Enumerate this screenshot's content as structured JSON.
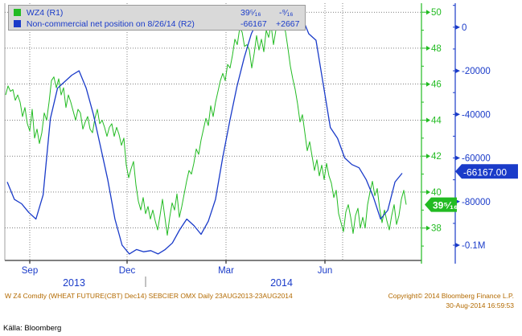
{
  "legend": {
    "series1": {
      "label": "WZ4 (R1)",
      "value": "39⁵⁄₁₆",
      "change": "-⁹⁄₁₆",
      "color": "#22bb22"
    },
    "series2": {
      "label": "Non-commercial net position on 8/26/14 (R2)",
      "value": "-66167",
      "change": "+2667",
      "color": "#1a3bc9"
    }
  },
  "footer": {
    "left": "W Z4 Comdty (WHEAT FUTURE(CBT) Dec14) SEBCIER OMX  Daily 23AUG2013-23AUG2014",
    "right1": "Copyright© 2014 Bloomberg Finance L.P.",
    "right2": "30-Aug-2014 16:59:53"
  },
  "source": "Källa: Bloomberg",
  "chart_data": {
    "type": "line",
    "x_ticks": [
      "Sep",
      "Dec",
      "Mar",
      "Jun"
    ],
    "year_labels": [
      "2013",
      "2014"
    ],
    "y1_ticks": [
      "50",
      "48",
      "46",
      "44",
      "42",
      "40",
      "38"
    ],
    "y1_range": [
      36.2,
      50.5
    ],
    "y2_ticks": [
      "0",
      "-20000",
      "-40000",
      "-60000",
      "-80000",
      "-0.1M"
    ],
    "y2_range": [
      -107000,
      11000
    ],
    "last_price_label": "39⁵⁄₁₆",
    "last_position_label": "-66167.00",
    "series": [
      {
        "name": "WZ4 (R1)",
        "axis": "y1",
        "color": "#22bb22",
        "values": [
          45.4,
          45.9,
          45.6,
          45.7,
          45.1,
          45.4,
          45.0,
          44.2,
          44.7,
          43.8,
          43.4,
          44.6,
          43.0,
          43.5,
          42.7,
          43.3,
          44.4,
          44.0,
          45.0,
          46.2,
          46.4,
          45.8,
          46.3,
          45.4,
          45.8,
          44.7,
          45.4,
          45.0,
          44.5,
          44.0,
          44.6,
          44.4,
          43.5,
          43.9,
          44.2,
          43.5,
          43.3,
          44.1,
          44.6,
          43.8,
          44.0,
          43.6,
          43.1,
          43.6,
          43.8,
          43.1,
          43.6,
          43.2,
          42.6,
          43.0,
          41.5,
          40.8,
          41.3,
          41.7,
          40.4,
          39.5,
          39.0,
          39.7,
          38.8,
          39.2,
          38.5,
          39.0,
          38.4,
          37.9,
          38.7,
          39.6,
          38.6,
          37.6,
          38.6,
          39.4,
          39.0,
          39.9,
          38.6,
          39.2,
          39.9,
          40.6,
          41.2,
          41.0,
          41.6,
          42.4,
          42.1,
          42.9,
          43.5,
          44.1,
          43.7,
          44.8,
          44.2,
          45.0,
          45.6,
          46.2,
          46.6,
          46.2,
          47.1,
          46.9,
          47.6,
          48.5,
          48.2,
          49.1,
          48.9,
          48.1,
          48.2,
          47.9,
          46.9,
          47.7,
          48.7,
          47.9,
          48.5,
          47.8,
          49.0,
          48.6,
          49.3,
          48.2,
          49.0,
          49.6,
          49.1,
          49.4,
          48.9,
          48.0,
          47.0,
          46.3,
          45.7,
          44.9,
          43.9,
          44.3,
          43.3,
          42.3,
          42.8,
          42.0,
          41.2,
          41.8,
          40.9,
          41.5,
          40.7,
          41.6,
          40.9,
          40.5,
          39.7,
          40.1,
          38.8,
          38.3,
          37.8,
          38.9,
          39.3,
          38.6,
          37.7,
          38.7,
          39.1,
          38.0,
          38.6,
          38.0,
          39.3,
          40.0,
          40.6,
          39.8,
          40.2,
          39.1,
          38.3,
          39.0,
          38.4,
          37.9,
          38.7,
          39.3,
          38.2,
          38.7,
          39.6,
          40.1,
          39.3
        ]
      },
      {
        "name": "Non-commercial net position on 8/26/14 (R2)",
        "axis": "y2",
        "color": "#1a3bc9",
        "values": [
          -71000,
          -79000,
          -81000,
          -85000,
          -88000,
          -77000,
          -42000,
          -28000,
          -25000,
          -22000,
          -20000,
          -28000,
          -40000,
          -55000,
          -70000,
          -88000,
          -100000,
          -104000,
          -102000,
          -103000,
          -102500,
          -104000,
          -102000,
          -99000,
          -93000,
          -88000,
          -91000,
          -95000,
          -89000,
          -79000,
          -60000,
          -43000,
          -27000,
          -14000,
          -3000,
          4000,
          7000,
          8000,
          6000,
          4000,
          6000,
          5000,
          -3000,
          -6000,
          -26000,
          -46000,
          -51000,
          -60000,
          -63000,
          -64500,
          -70000,
          -78000,
          -88000,
          -84000,
          -71000,
          -67000
        ]
      }
    ]
  }
}
